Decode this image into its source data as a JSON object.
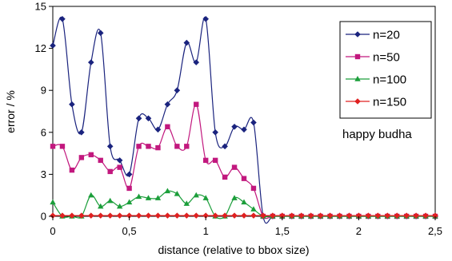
{
  "chart_data": {
    "type": "line",
    "xlabel": "distance (relative to bbox size)",
    "ylabel": "error / %",
    "xlim": [
      0,
      2.5
    ],
    "ylim": [
      0,
      15
    ],
    "xticks": [
      0,
      0.5,
      1,
      1.5,
      2,
      2.5
    ],
    "xtick_labels": [
      "0",
      "0,5",
      "1",
      "1,5",
      "2",
      "2,5"
    ],
    "yticks": [
      0,
      3,
      6,
      9,
      12,
      15
    ],
    "grid": false,
    "legend_placement": "top-right",
    "annotation": "happy budha",
    "x": [
      0,
      0.0625,
      0.125,
      0.1875,
      0.25,
      0.3125,
      0.375,
      0.4375,
      0.5,
      0.5625,
      0.625,
      0.6875,
      0.75,
      0.8125,
      0.875,
      0.9375,
      1.0,
      1.0625,
      1.125,
      1.1875,
      1.25,
      1.3125,
      1.375,
      1.4375,
      1.5,
      1.5625,
      1.625,
      1.6875,
      1.75,
      1.8125,
      1.875,
      1.9375,
      2.0,
      2.0625,
      2.125,
      2.1875,
      2.25,
      2.3125,
      2.375,
      2.4375,
      2.5
    ],
    "series": [
      {
        "name": "n=20",
        "color": "#1a237e",
        "marker": "diamond",
        "values": [
          12.2,
          14.1,
          8.0,
          6.0,
          11.0,
          13.1,
          5.0,
          4.0,
          3.0,
          7.0,
          7.0,
          6.2,
          8.0,
          9.0,
          12.4,
          11.0,
          14.1,
          6.0,
          5.0,
          6.4,
          6.2,
          6.7,
          0,
          0,
          0,
          0,
          0,
          0,
          0,
          0,
          0,
          0,
          0,
          0,
          0,
          0,
          0,
          0,
          0,
          0,
          0
        ]
      },
      {
        "name": "n=50",
        "color": "#c2187e",
        "marker": "square",
        "values": [
          5.0,
          5.0,
          3.3,
          4.2,
          4.4,
          4.0,
          3.2,
          3.5,
          2.0,
          5.0,
          5.0,
          4.9,
          6.4,
          5.0,
          5.0,
          8.0,
          4.0,
          4.0,
          2.8,
          3.5,
          2.7,
          2.0,
          0,
          0,
          0,
          0,
          0,
          0,
          0,
          0,
          0,
          0,
          0,
          0,
          0,
          0,
          0,
          0,
          0,
          0,
          0
        ]
      },
      {
        "name": "n=100",
        "color": "#1b9e3a",
        "marker": "triangle",
        "values": [
          1.0,
          0,
          0,
          0,
          1.5,
          0.7,
          1.1,
          0.7,
          1.0,
          1.4,
          1.3,
          1.3,
          1.8,
          1.6,
          0.9,
          1.5,
          1.3,
          0,
          0,
          1.3,
          1.0,
          0.5,
          0,
          0,
          0,
          0,
          0,
          0,
          0,
          0,
          0,
          0,
          0,
          0,
          0,
          0,
          0,
          0,
          0,
          0,
          0
        ]
      },
      {
        "name": "n=150",
        "color": "#e02020",
        "marker": "diamond",
        "values": [
          0.05,
          0.05,
          0.05,
          0.05,
          0.05,
          0.05,
          0.05,
          0.05,
          0.05,
          0.05,
          0.05,
          0.05,
          0.05,
          0.05,
          0.05,
          0.05,
          0.05,
          0.05,
          0.05,
          0.05,
          0.05,
          0.05,
          0.05,
          0.05,
          0.05,
          0.05,
          0.05,
          0.05,
          0.05,
          0.05,
          0.05,
          0.05,
          0.05,
          0.05,
          0.05,
          0.05,
          0.05,
          0.05,
          0.05,
          0.05,
          0.05
        ]
      }
    ]
  }
}
